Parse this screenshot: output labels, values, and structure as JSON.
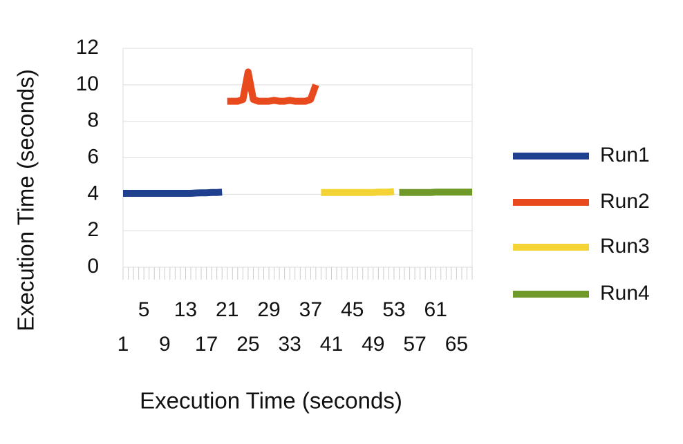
{
  "chart_data": {
    "type": "line",
    "x_label": "Execution Time (seconds)",
    "y_label": "Execution Time (seconds)",
    "x": [
      1,
      2,
      3,
      4,
      5,
      6,
      7,
      8,
      9,
      10,
      11,
      12,
      13,
      14,
      15,
      16,
      17,
      18,
      19,
      20,
      21,
      22,
      23,
      24,
      25,
      26,
      27,
      28,
      29,
      30,
      31,
      32,
      33,
      34,
      35,
      36,
      37,
      38,
      39,
      40,
      41,
      42,
      43,
      44,
      45,
      46,
      47,
      48,
      49,
      50,
      51,
      52,
      53,
      54,
      55,
      56,
      57,
      58,
      59,
      60,
      61,
      62,
      63,
      64,
      65,
      66,
      67,
      68
    ],
    "xlim": [
      1,
      68
    ],
    "xticks": [
      1,
      5,
      9,
      13,
      17,
      21,
      25,
      29,
      33,
      37,
      41,
      45,
      49,
      53,
      57,
      61,
      65
    ],
    "ylim": [
      0,
      12
    ],
    "yticks": [
      0,
      2,
      4,
      6,
      8,
      10,
      12
    ],
    "grid": true,
    "legend": "right",
    "series": [
      {
        "name": "Run1",
        "color": "#1f3f8f",
        "values": [
          4.05,
          4.05,
          4.05,
          4.05,
          4.05,
          4.05,
          4.05,
          4.05,
          4.05,
          4.05,
          4.05,
          4.05,
          4.05,
          4.05,
          4.07,
          4.08,
          4.08,
          4.1,
          4.1,
          4.12,
          null,
          null,
          null,
          null,
          null,
          null,
          null,
          null,
          null,
          null,
          null,
          null,
          null,
          null,
          null,
          null,
          null,
          null,
          null,
          null,
          null,
          null,
          null,
          null,
          null,
          null,
          null,
          null,
          null,
          null,
          null,
          null,
          null,
          null,
          null,
          null,
          null,
          null,
          null,
          null,
          null,
          null,
          null,
          null,
          null,
          null,
          null,
          null
        ]
      },
      {
        "name": "Run2",
        "color": "#e8491d",
        "values": [
          null,
          null,
          null,
          null,
          null,
          null,
          null,
          null,
          null,
          null,
          null,
          null,
          null,
          null,
          null,
          null,
          null,
          null,
          null,
          null,
          9.1,
          9.1,
          9.1,
          9.2,
          10.7,
          9.2,
          9.1,
          9.1,
          9.1,
          9.15,
          9.1,
          9.1,
          9.15,
          9.1,
          9.1,
          9.1,
          9.2,
          10.0,
          null,
          null,
          null,
          null,
          null,
          null,
          null,
          null,
          null,
          null,
          null,
          null,
          null,
          null,
          null,
          null,
          null,
          null,
          null,
          null,
          null,
          null,
          null,
          null,
          null,
          null,
          null,
          null,
          null,
          null
        ]
      },
      {
        "name": "Run3",
        "color": "#f3d434",
        "values": [
          null,
          null,
          null,
          null,
          null,
          null,
          null,
          null,
          null,
          null,
          null,
          null,
          null,
          null,
          null,
          null,
          null,
          null,
          null,
          null,
          null,
          null,
          null,
          null,
          null,
          null,
          null,
          null,
          null,
          null,
          null,
          null,
          null,
          null,
          null,
          null,
          null,
          null,
          4.1,
          4.1,
          4.1,
          4.1,
          4.1,
          4.1,
          4.1,
          4.1,
          4.1,
          4.1,
          4.1,
          4.12,
          4.12,
          4.12,
          4.15,
          null,
          null,
          null,
          null,
          null,
          null,
          null,
          null,
          null,
          null,
          null,
          null,
          null,
          null,
          null
        ]
      },
      {
        "name": "Run4",
        "color": "#6f9a2a",
        "values": [
          null,
          null,
          null,
          null,
          null,
          null,
          null,
          null,
          null,
          null,
          null,
          null,
          null,
          null,
          null,
          null,
          null,
          null,
          null,
          null,
          null,
          null,
          null,
          null,
          null,
          null,
          null,
          null,
          null,
          null,
          null,
          null,
          null,
          null,
          null,
          null,
          null,
          null,
          null,
          null,
          null,
          null,
          null,
          null,
          null,
          null,
          null,
          null,
          null,
          null,
          null,
          null,
          null,
          4.1,
          4.1,
          4.1,
          4.1,
          4.1,
          4.1,
          4.1,
          4.12,
          4.12,
          4.12,
          4.12,
          4.12,
          4.12,
          4.12,
          4.12
        ]
      }
    ]
  }
}
